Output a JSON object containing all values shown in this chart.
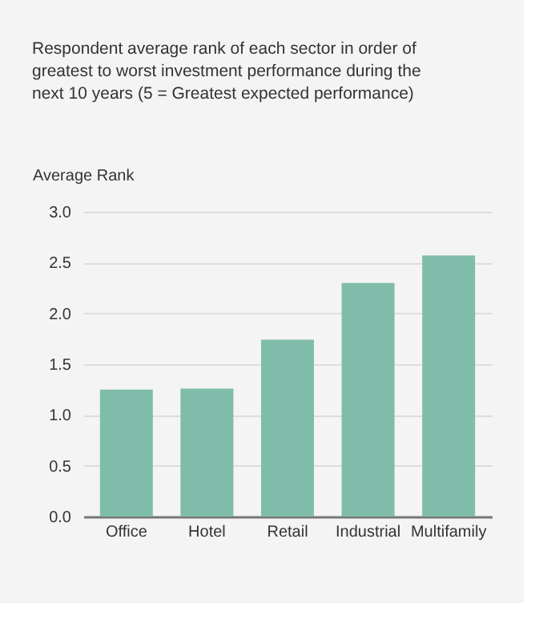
{
  "chart_data": {
    "type": "bar",
    "title": "Respondent average rank of each sector in order of greatest to worst investment performance during the next 10 years (5 = Greatest expected performance)",
    "ylabel": "Average Rank",
    "categories": [
      "Office",
      "Hotel",
      "Retail",
      "Industrial",
      "Multifamily"
    ],
    "values": [
      1.25,
      1.26,
      1.74,
      2.3,
      2.57
    ],
    "color": "#80bcaa",
    "ylim": [
      0,
      3
    ],
    "yticks": [
      {
        "value": 0,
        "label": "0.0"
      },
      {
        "value": 0.5,
        "label": "0.5"
      },
      {
        "value": 1,
        "label": "1.0"
      },
      {
        "value": 1.5,
        "label": "1.5"
      },
      {
        "value": 2,
        "label": "2.0"
      },
      {
        "value": 2.5,
        "label": "2.5"
      },
      {
        "value": 3,
        "label": "3.0"
      }
    ],
    "grid": "y"
  }
}
